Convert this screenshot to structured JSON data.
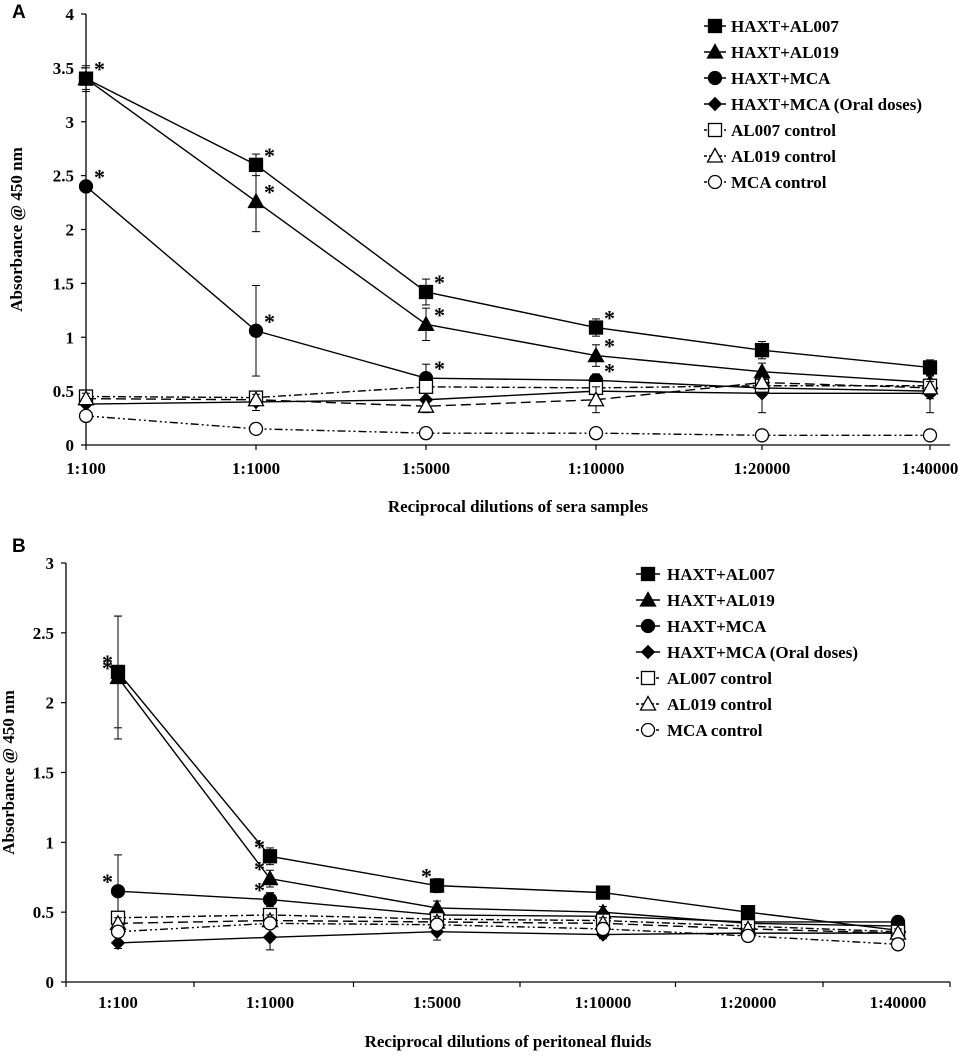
{
  "chart_data": [
    {
      "panel": "A",
      "type": "line",
      "xlabel": "Reciprocal dilutions of sera samples",
      "ylabel": "Absorbance @ 450 nm",
      "categories": [
        "1:100",
        "1:1000",
        "1:5000",
        "1:10000",
        "1:20000",
        "1:40000"
      ],
      "ylim": [
        0,
        4
      ],
      "yticks": [
        "0",
        "0.5",
        "1",
        "1.5",
        "2",
        "2.5",
        "3",
        "3.5",
        "4"
      ],
      "legend_position": "top-right",
      "series": [
        {
          "name": "HAXT+AL007",
          "marker": "square-filled",
          "dash": "solid",
          "values": [
            3.4,
            2.6,
            1.42,
            1.09,
            0.88,
            0.72
          ],
          "err": [
            0.12,
            0.1,
            0.12,
            0.08,
            0.08,
            0.07
          ],
          "stars": [
            true,
            true,
            true,
            true,
            false,
            false
          ]
        },
        {
          "name": "HAXT+AL019",
          "marker": "triangle-filled",
          "dash": "solid",
          "values": [
            3.4,
            2.26,
            1.12,
            0.83,
            0.68,
            0.58
          ],
          "err": [
            0.1,
            0.28,
            0.15,
            0.1,
            0.08,
            0.06
          ],
          "stars": [
            false,
            true,
            true,
            true,
            false,
            false
          ]
        },
        {
          "name": "HAXT+MCA",
          "marker": "circle-filled",
          "dash": "solid",
          "values": [
            2.4,
            1.06,
            0.62,
            0.6,
            0.53,
            0.5
          ],
          "err": [
            0.05,
            0.42,
            0.13,
            0.06,
            0.08,
            0.07
          ],
          "stars": [
            true,
            true,
            true,
            true,
            false,
            false
          ]
        },
        {
          "name": "HAXT+MCA  (Oral doses)",
          "marker": "diamond-filled",
          "dash": "solid",
          "values": [
            0.38,
            0.4,
            0.42,
            0.5,
            0.48,
            0.48
          ],
          "err": [
            0.08,
            0.08,
            0.08,
            0.08,
            0.18,
            0.18
          ],
          "stars": [
            false,
            false,
            false,
            false,
            false,
            false
          ]
        },
        {
          "name": "AL007 control",
          "marker": "square-open",
          "dash": "dash-dot",
          "values": [
            0.45,
            0.44,
            0.54,
            0.53,
            0.55,
            0.55
          ],
          "err": [
            0.05,
            0.05,
            0.06,
            0.05,
            0.05,
            0.05
          ],
          "stars": [
            false,
            false,
            false,
            false,
            false,
            false
          ]
        },
        {
          "name": "AL019 control",
          "marker": "triangle-open",
          "dash": "long-dash",
          "values": [
            0.43,
            0.42,
            0.36,
            0.42,
            0.58,
            0.53
          ],
          "err": [
            0.05,
            0.05,
            0.06,
            0.12,
            0.06,
            0.06
          ],
          "stars": [
            false,
            false,
            false,
            false,
            false,
            false
          ]
        },
        {
          "name": "MCA control",
          "marker": "circle-open",
          "dash": "dash-dot-dot",
          "values": [
            0.27,
            0.15,
            0.11,
            0.11,
            0.09,
            0.09
          ],
          "err": [
            0.05,
            0.03,
            0.02,
            0.02,
            0.02,
            0.02
          ],
          "stars": [
            false,
            false,
            false,
            false,
            false,
            false
          ]
        }
      ]
    },
    {
      "panel": "B",
      "type": "line",
      "xlabel": "Reciprocal dilutions of peritoneal fluids",
      "ylabel": "Absorbance @ 450 nm",
      "categories": [
        "1:100",
        "1:1000",
        "1:5000",
        "1:10000",
        "1:20000",
        "1:40000"
      ],
      "ylim": [
        0,
        3
      ],
      "yticks": [
        "0",
        "0.5",
        "1",
        "1.5",
        "2",
        "2.5",
        "3"
      ],
      "legend_position": "top-right",
      "series": [
        {
          "name": "HAXT+AL007",
          "marker": "square-filled",
          "dash": "solid",
          "values": [
            2.22,
            0.9,
            0.69,
            0.64,
            0.5,
            0.37
          ],
          "err": [
            0.4,
            0.06,
            0.05,
            0.04,
            0.04,
            0.03
          ],
          "stars": [
            true,
            true,
            true,
            false,
            false,
            false
          ]
        },
        {
          "name": "HAXT+AL019",
          "marker": "triangle-filled",
          "dash": "solid",
          "values": [
            2.18,
            0.74,
            0.53,
            0.5,
            0.42,
            0.4
          ],
          "err": [
            0.44,
            0.06,
            0.05,
            0.04,
            0.04,
            0.03
          ],
          "stars": [
            true,
            true,
            false,
            false,
            false,
            false
          ]
        },
        {
          "name": "HAXT+MCA",
          "marker": "circle-filled",
          "dash": "solid",
          "values": [
            0.65,
            0.59,
            0.48,
            0.47,
            0.43,
            0.43
          ],
          "err": [
            0.26,
            0.05,
            0.04,
            0.04,
            0.03,
            0.03
          ],
          "stars": [
            true,
            true,
            false,
            false,
            false,
            false
          ]
        },
        {
          "name": "HAXT+MCA (Oral doses)",
          "marker": "diamond-filled",
          "dash": "solid",
          "values": [
            0.28,
            0.32,
            0.36,
            0.34,
            0.35,
            0.35
          ],
          "err": [
            0.04,
            0.09,
            0.06,
            0.03,
            0.03,
            0.03
          ],
          "stars": [
            false,
            false,
            false,
            false,
            false,
            false
          ]
        },
        {
          "name": "AL007 control",
          "marker": "square-open",
          "dash": "dash-dot",
          "values": [
            0.46,
            0.48,
            0.45,
            0.44,
            0.4,
            0.36
          ],
          "err": [
            0.04,
            0.04,
            0.04,
            0.04,
            0.03,
            0.03
          ],
          "stars": [
            false,
            false,
            false,
            false,
            false,
            false
          ]
        },
        {
          "name": "AL019 control",
          "marker": "triangle-open",
          "dash": "long-dash",
          "values": [
            0.42,
            0.44,
            0.43,
            0.42,
            0.38,
            0.35
          ],
          "err": [
            0.04,
            0.04,
            0.04,
            0.04,
            0.03,
            0.03
          ],
          "stars": [
            false,
            false,
            false,
            false,
            false,
            false
          ]
        },
        {
          "name": "MCA control",
          "marker": "circle-open",
          "dash": "dash-dot-dot",
          "values": [
            0.36,
            0.42,
            0.41,
            0.38,
            0.33,
            0.27
          ],
          "err": [
            0.04,
            0.04,
            0.04,
            0.04,
            0.03,
            0.03
          ],
          "stars": [
            false,
            false,
            false,
            false,
            false,
            false
          ]
        }
      ]
    }
  ]
}
